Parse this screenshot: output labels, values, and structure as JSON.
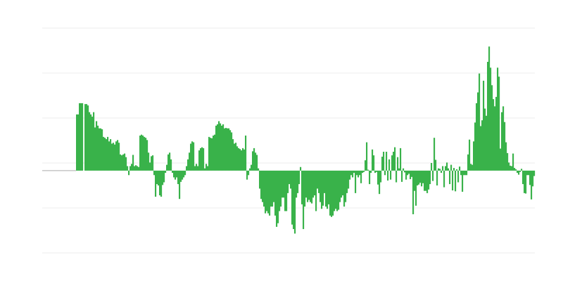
{
  "chart_data": {
    "type": "bar",
    "title": "",
    "xlabel": "",
    "ylabel": "",
    "ylim": [
      -18.3,
      31.7
    ],
    "grid": true,
    "grid_step": 10,
    "legend": "none",
    "colors": {
      "bar": "#39b24a",
      "grid": "#ececec",
      "baseline": "#aaaaaa"
    },
    "values": [
      0,
      0,
      0,
      0,
      0,
      0,
      0,
      0,
      0,
      0,
      0,
      0,
      0,
      0,
      0,
      0,
      0,
      0,
      0,
      0,
      0,
      0,
      0,
      0,
      12.5,
      12.5,
      15,
      15,
      15,
      0,
      14.8,
      14.8,
      14.5,
      13,
      12.5,
      12,
      13,
      9.6,
      11,
      10,
      9.4,
      9.4,
      9.2,
      7.5,
      7.3,
      7,
      7.5,
      6.5,
      7,
      6,
      6.2,
      5.8,
      6.5,
      6.8,
      6.2,
      3.6,
      3.4,
      3.6,
      3.8,
      3,
      1,
      -1,
      1,
      1.5,
      3.5,
      1,
      1.2,
      1,
      0.8,
      7.8,
      8,
      7.8,
      7.5,
      7.3,
      6.8,
      4,
      1.8,
      3.2,
      3.4,
      -1,
      -5.8,
      -3,
      -3.3,
      -5.5,
      -5.8,
      -3.2,
      -2.6,
      -0.5,
      1.3,
      3.6,
      4,
      2.5,
      -0.5,
      -1.5,
      -2,
      -1.5,
      -3,
      -6.3,
      -2.5,
      -2,
      -1.5,
      -1,
      1,
      2.5,
      4,
      6,
      6.5,
      6.3,
      1,
      1.5,
      1,
      4.5,
      5,
      5.2,
      5,
      0.5,
      1.5,
      1,
      7.5,
      7.3,
      7.2,
      7.8,
      8,
      10,
      10.3,
      11,
      10.5,
      10,
      10.3,
      9.4,
      9.5,
      9.4,
      9.4,
      9,
      8.5,
      7,
      6,
      6.2,
      5.4,
      5,
      4.8,
      4.5,
      5,
      4.7,
      7.8,
      -2,
      -1,
      0.5,
      1.3,
      4.3,
      5,
      4,
      3.5,
      0.5,
      -4,
      -6.3,
      -7,
      -8,
      -9.5,
      -9,
      -9.5,
      -10,
      -8,
      -8,
      -7,
      -10,
      -12.5,
      -11.7,
      -9,
      -8,
      -6,
      -6,
      -9,
      -9,
      -5,
      -3,
      -4,
      -12,
      -13,
      -14,
      -6,
      -5,
      -3,
      0.8,
      -7.5,
      -13,
      -8,
      -6,
      -7,
      -6.5,
      -7,
      -7.3,
      -6,
      -5.5,
      -9,
      -4,
      -5,
      -7,
      -8.5,
      -7.8,
      -5,
      -8,
      -8.5,
      -7.5,
      -10,
      -10.3,
      -10,
      -9,
      -8.5,
      -9,
      -8.7,
      -7,
      -6,
      -5.5,
      -8,
      -7,
      -5,
      -4,
      -2,
      -1,
      -1.5,
      -0.5,
      -5,
      -1,
      -1.5,
      -1,
      -2.8,
      -0.5,
      -0.3,
      2.3,
      6.3,
      0.2,
      -3,
      -0.5,
      4.7,
      3.4,
      -0.5,
      -0.3,
      -3.1,
      -5.2,
      -2.6,
      3.1,
      4.2,
      -1,
      4.2,
      -2.2,
      2.5,
      -2,
      3.4,
      4.2,
      5.2,
      -2.6,
      3,
      0.5,
      5,
      -2.5,
      0.5,
      -0.4,
      -2,
      -1,
      -0.7,
      -1.9,
      -1.4,
      -9.7,
      -4.5,
      -7.8,
      -3.3,
      -3.1,
      -2.7,
      -3.5,
      -2.8,
      -4.5,
      -4.5,
      -5,
      -4.2,
      -3,
      1.7,
      -2.3,
      7.3,
      2.4,
      -3.3,
      0.5,
      0.4,
      -0.5,
      1,
      -3.7,
      1,
      1.8,
      0.5,
      -3,
      1.3,
      -4.4,
      0.6,
      -4.6,
      0.3,
      -2.6,
      0.9,
      -1,
      -4.7,
      -1,
      -1,
      -1,
      3.6,
      6.9,
      1.5,
      1.3,
      6.5,
      10.7,
      15,
      17.4,
      21.6,
      9.9,
      11.2,
      20,
      13.8,
      12.2,
      24.2,
      27.6,
      22.9,
      19,
      15.9,
      14.3,
      16.4,
      22.9,
      20.9,
      4.9,
      13,
      14.3,
      10.8,
      6.3,
      3.9,
      1.8,
      1.1,
      1,
      3.8,
      0.6,
      0.3,
      -0.5,
      -0.9,
      -0.3,
      0.4,
      -3,
      -5,
      -5.1,
      -1,
      -1,
      -3.2,
      -6.4,
      -3.5,
      -1.2
    ]
  }
}
